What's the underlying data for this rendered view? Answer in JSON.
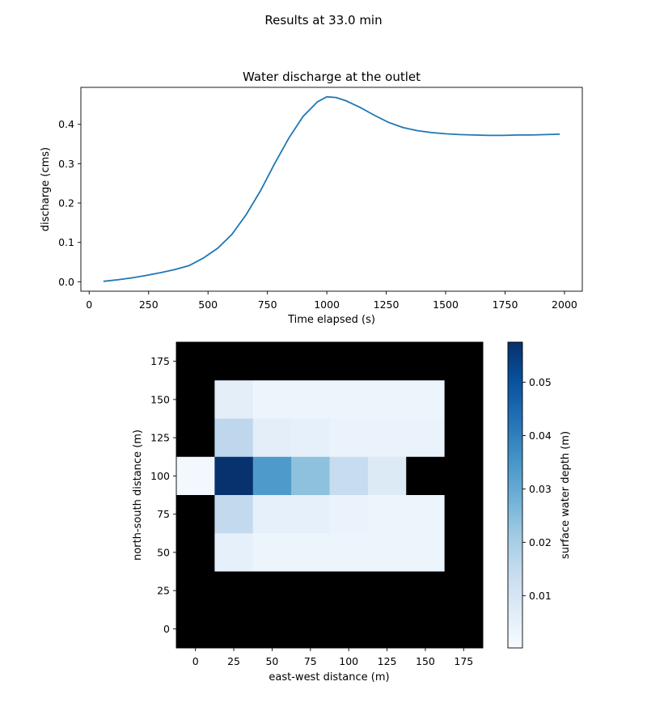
{
  "suptitle": "Results at 33.0 min",
  "chart_data": [
    {
      "type": "line",
      "title": "Water discharge at the outlet",
      "xlabel": "Time elapsed (s)",
      "ylabel": "discharge (cms)",
      "xlim": [
        -35,
        2075
      ],
      "ylim": [
        -0.024,
        0.494
      ],
      "xticks": [
        0,
        250,
        500,
        750,
        1000,
        1250,
        1500,
        1750,
        2000
      ],
      "yticks": [
        0.0,
        0.1,
        0.2,
        0.3,
        0.4
      ],
      "ytick_labels": [
        "0.0",
        "0.1",
        "0.2",
        "0.3",
        "0.4"
      ],
      "line_color": "#1f77b4",
      "grid": false,
      "x": [
        60,
        120,
        180,
        240,
        300,
        360,
        420,
        480,
        540,
        600,
        660,
        720,
        780,
        840,
        900,
        960,
        1000,
        1040,
        1080,
        1140,
        1200,
        1260,
        1320,
        1380,
        1440,
        1500,
        1560,
        1620,
        1680,
        1740,
        1800,
        1860,
        1920,
        1980
      ],
      "y": [
        0.001,
        0.005,
        0.01,
        0.016,
        0.023,
        0.031,
        0.041,
        0.06,
        0.085,
        0.12,
        0.17,
        0.23,
        0.3,
        0.365,
        0.42,
        0.457,
        0.47,
        0.468,
        0.46,
        0.443,
        0.423,
        0.405,
        0.392,
        0.384,
        0.379,
        0.376,
        0.374,
        0.373,
        0.372,
        0.372,
        0.373,
        0.373,
        0.374,
        0.375
      ]
    },
    {
      "type": "heatmap",
      "xlabel": "east-west distance (m)",
      "ylabel": "north-south distance (m)",
      "xlim": [
        -12.5,
        187.5
      ],
      "ylim": [
        -12.5,
        187.5
      ],
      "xticks": [
        0,
        25,
        50,
        75,
        100,
        125,
        150,
        175
      ],
      "yticks": [
        0,
        25,
        50,
        75,
        100,
        125,
        150,
        175
      ],
      "cell_size": 25,
      "x_centers": [
        0,
        25,
        50,
        75,
        100,
        125,
        150,
        175
      ],
      "y_centers": [
        0,
        25,
        50,
        75,
        100,
        125,
        150,
        175
      ],
      "colormap": "Blues",
      "masked_color": "#000000",
      "comment_rows": "rows listed from north (175) to south (0); null = closed/masked node",
      "values": [
        [
          null,
          null,
          null,
          null,
          null,
          null,
          null,
          null
        ],
        [
          null,
          0.006,
          0.003,
          0.003,
          0.003,
          0.003,
          0.003,
          null
        ],
        [
          null,
          0.016,
          0.006,
          0.005,
          0.004,
          0.004,
          0.004,
          null
        ],
        [
          0.0015,
          0.057,
          0.034,
          0.024,
          0.014,
          0.008,
          null,
          null
        ],
        [
          null,
          0.015,
          0.005,
          0.005,
          0.004,
          0.003,
          0.003,
          null
        ],
        [
          null,
          0.005,
          0.003,
          0.003,
          0.003,
          0.003,
          0.003,
          null
        ],
        [
          null,
          null,
          null,
          null,
          null,
          null,
          null,
          null
        ],
        [
          null,
          null,
          null,
          null,
          null,
          null,
          null,
          null
        ]
      ],
      "colorbar": {
        "label": "surface water depth (m)",
        "min": 0.0002,
        "max": 0.0575,
        "ticks": [
          0.01,
          0.02,
          0.03,
          0.04,
          0.05
        ],
        "tick_labels": [
          "0.01",
          "0.02",
          "0.03",
          "0.04",
          "0.05"
        ]
      }
    }
  ]
}
